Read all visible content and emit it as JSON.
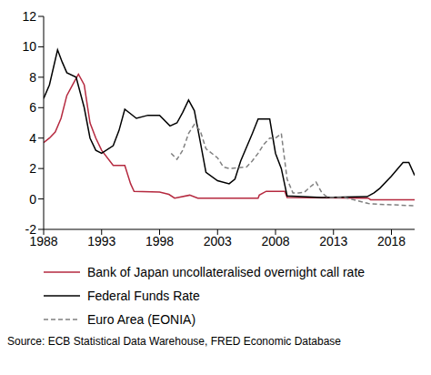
{
  "chart_data": {
    "type": "line",
    "xlim": [
      1988,
      2020
    ],
    "xticks": [
      1988,
      1993,
      1998,
      2003,
      2008,
      2013,
      2018
    ],
    "ylim": [
      -2,
      12
    ],
    "yticks": [
      -2,
      0,
      2,
      4,
      6,
      8,
      10,
      12
    ],
    "grid": false,
    "legend": "bottom",
    "annotations": [
      "Source: ECB Statistical Data Warehouse, FRED Economic Database"
    ],
    "series": [
      {
        "name": "Bank of Japan uncollateralised overnight call rate",
        "color": "#b5293f",
        "line_style": "solid",
        "x": [
          1988,
          1988.5,
          1989,
          1989.5,
          1990,
          1990.5,
          1991,
          1991.5,
          1992,
          1992.5,
          1993,
          1994,
          1995,
          1995.5,
          1995.8,
          1998,
          1998.8,
          1999.3,
          2000.6,
          2001.3,
          2006.5,
          2006.6,
          2007.2,
          2008.8,
          2009,
          2016,
          2016.2,
          2020
        ],
        "values": [
          3.7,
          4.0,
          4.4,
          5.3,
          6.8,
          7.5,
          8.2,
          7.5,
          5.0,
          4.0,
          3.2,
          2.2,
          2.2,
          1.0,
          0.5,
          0.45,
          0.3,
          0.05,
          0.25,
          0.05,
          0.05,
          0.25,
          0.5,
          0.5,
          0.1,
          0.05,
          -0.05,
          -0.05
        ]
      },
      {
        "name": "Federal Funds Rate",
        "color": "#000000",
        "line_style": "solid",
        "x": [
          1988,
          1988.5,
          1989.2,
          1989.6,
          1990,
          1990.8,
          1991.5,
          1992,
          1992.5,
          1993,
          1994,
          1994.5,
          1995,
          1996,
          1997,
          1998,
          1998.9,
          1999.5,
          2000,
          2000.5,
          2001,
          2001.5,
          2002,
          2003,
          2004,
          2004.5,
          2005,
          2006,
          2006.5,
          2007.5,
          2008,
          2008.5,
          2009,
          2012,
          2015.9,
          2016.5,
          2017,
          2018,
          2019,
          2019.5,
          2020
        ],
        "values": [
          6.6,
          7.5,
          9.8,
          9.0,
          8.3,
          8.0,
          6.0,
          4.0,
          3.2,
          3.0,
          3.5,
          4.5,
          5.9,
          5.3,
          5.5,
          5.5,
          4.8,
          5.0,
          5.7,
          6.5,
          5.8,
          3.8,
          1.75,
          1.2,
          1.0,
          1.3,
          2.5,
          4.3,
          5.25,
          5.25,
          3.0,
          2.0,
          0.2,
          0.1,
          0.15,
          0.4,
          0.7,
          1.5,
          2.4,
          2.4,
          1.55
        ]
      },
      {
        "name": "Euro Area (EONIA)",
        "color": "#808080",
        "line_style": "dashed",
        "x": [
          1999,
          1999.5,
          2000,
          2000.5,
          2001,
          2001.5,
          2002,
          2003,
          2003.5,
          2004,
          2005.5,
          2006,
          2006.5,
          2007,
          2007.5,
          2008,
          2008.5,
          2009,
          2009.5,
          2010,
          2010.5,
          2011,
          2011.5,
          2012,
          2012.5,
          2014,
          2015,
          2016,
          2017,
          2020
        ],
        "values": [
          3.0,
          2.6,
          3.2,
          4.3,
          4.9,
          4.5,
          3.3,
          2.7,
          2.1,
          2.0,
          2.1,
          2.5,
          3.0,
          3.6,
          4.0,
          4.0,
          4.3,
          1.3,
          0.4,
          0.4,
          0.45,
          0.8,
          1.1,
          0.4,
          0.1,
          0.1,
          -0.1,
          -0.3,
          -0.35,
          -0.45
        ]
      }
    ]
  }
}
